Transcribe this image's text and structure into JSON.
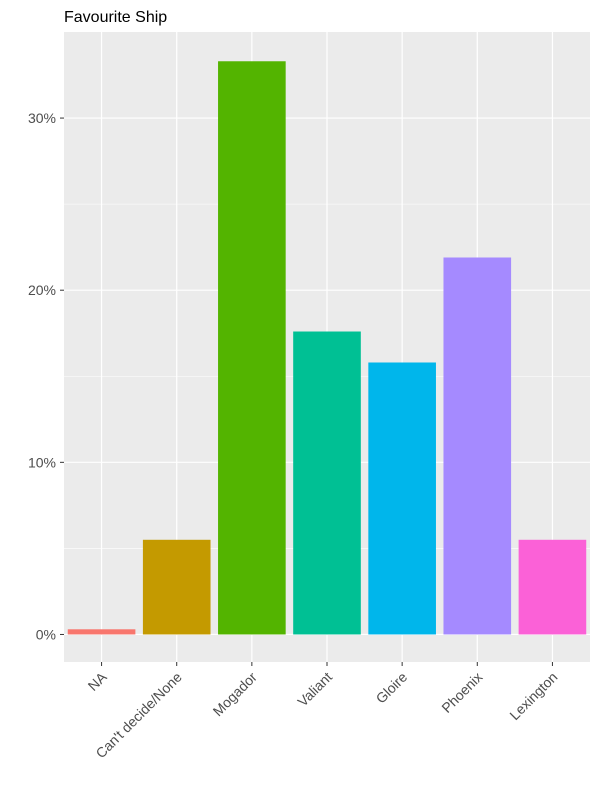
{
  "chart_data": {
    "type": "bar",
    "title": "Favourite Ship",
    "xlabel": "",
    "ylabel": "",
    "categories": [
      "NA",
      "Can't decide/None",
      "Mogador",
      "Valiant",
      "Gloire",
      "Phoenix",
      "Lexington"
    ],
    "values": [
      0.3,
      5.5,
      33.3,
      17.6,
      15.8,
      21.9,
      5.5
    ],
    "colors": [
      "#F8766D",
      "#C49A00",
      "#53B400",
      "#00C094",
      "#00B6EB",
      "#A58AFF",
      "#FB61D7"
    ],
    "y_ticks": [
      0,
      10,
      20,
      30
    ],
    "y_tick_labels": [
      "0%",
      "10%",
      "20%",
      "30%"
    ],
    "ylim": [
      -1.6,
      35
    ],
    "grid": true,
    "panel_background": "#EBEBEB",
    "legend": "none"
  }
}
